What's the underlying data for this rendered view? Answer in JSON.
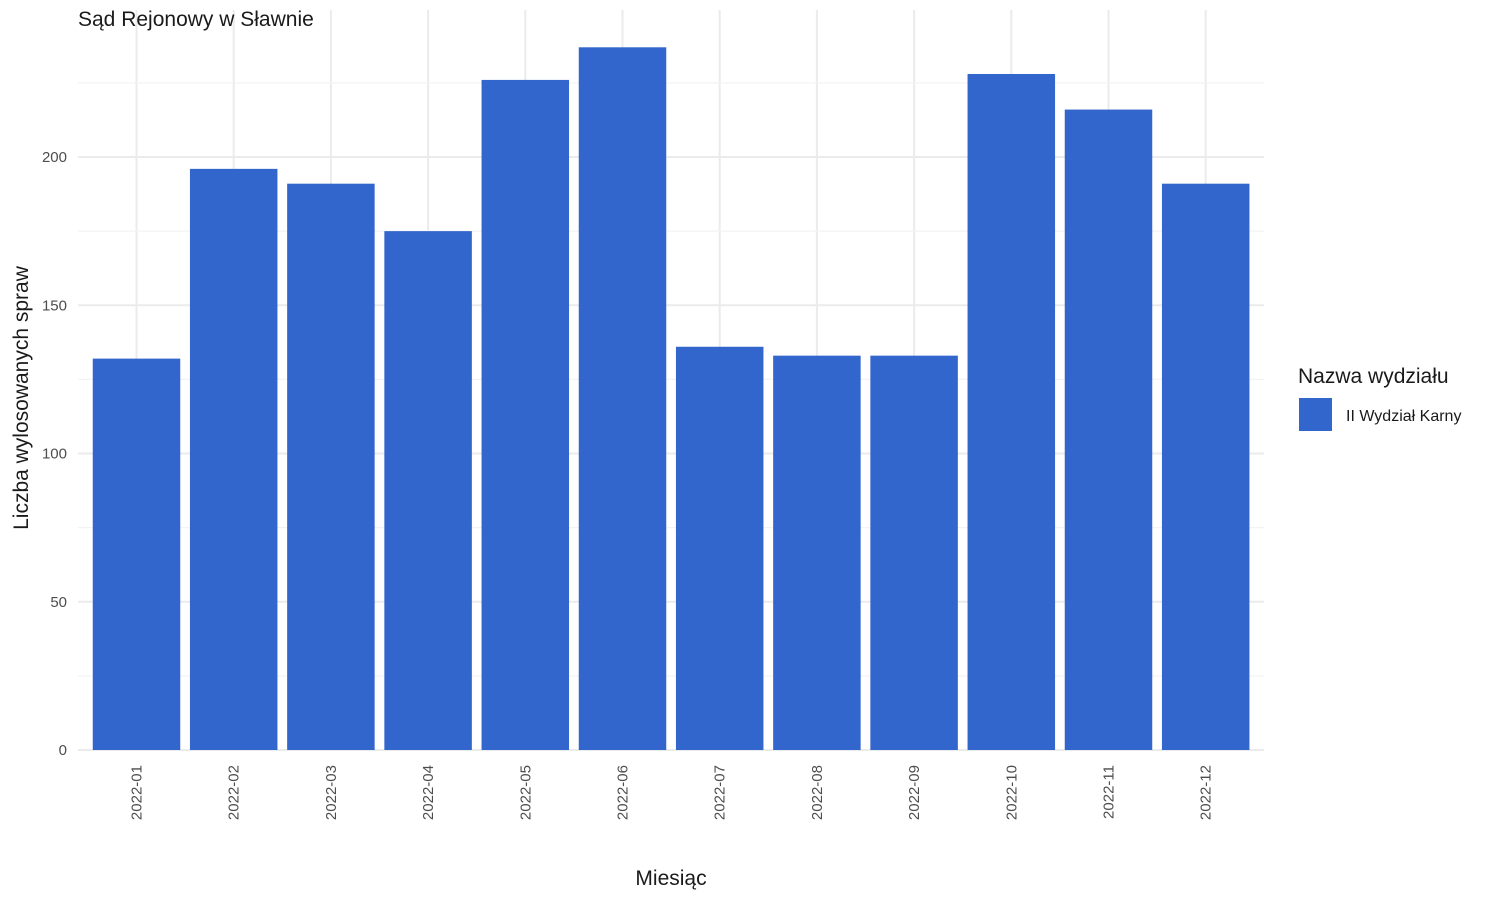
{
  "chart_data": {
    "type": "bar",
    "title": "Sąd Rejonowy w Sławnie",
    "xlabel": "Miesiąc",
    "ylabel": "Liczba wylosowanych spraw",
    "categories": [
      "2022-01",
      "2022-02",
      "2022-03",
      "2022-04",
      "2022-05",
      "2022-06",
      "2022-07",
      "2022-08",
      "2022-09",
      "2022-10",
      "2022-11",
      "2022-12"
    ],
    "series": [
      {
        "name": "II Wydział Karny",
        "values": [
          132,
          196,
          191,
          175,
          226,
          237,
          136,
          133,
          133,
          228,
          216,
          191
        ]
      }
    ],
    "y_ticks": [
      "0",
      "50",
      "100",
      "150",
      "200"
    ],
    "ylim": [
      0,
      245
    ],
    "legend": {
      "title": "Nazwa wydziału",
      "position": "right"
    },
    "grid": true,
    "colors": {
      "bar": "#3366cc"
    }
  }
}
